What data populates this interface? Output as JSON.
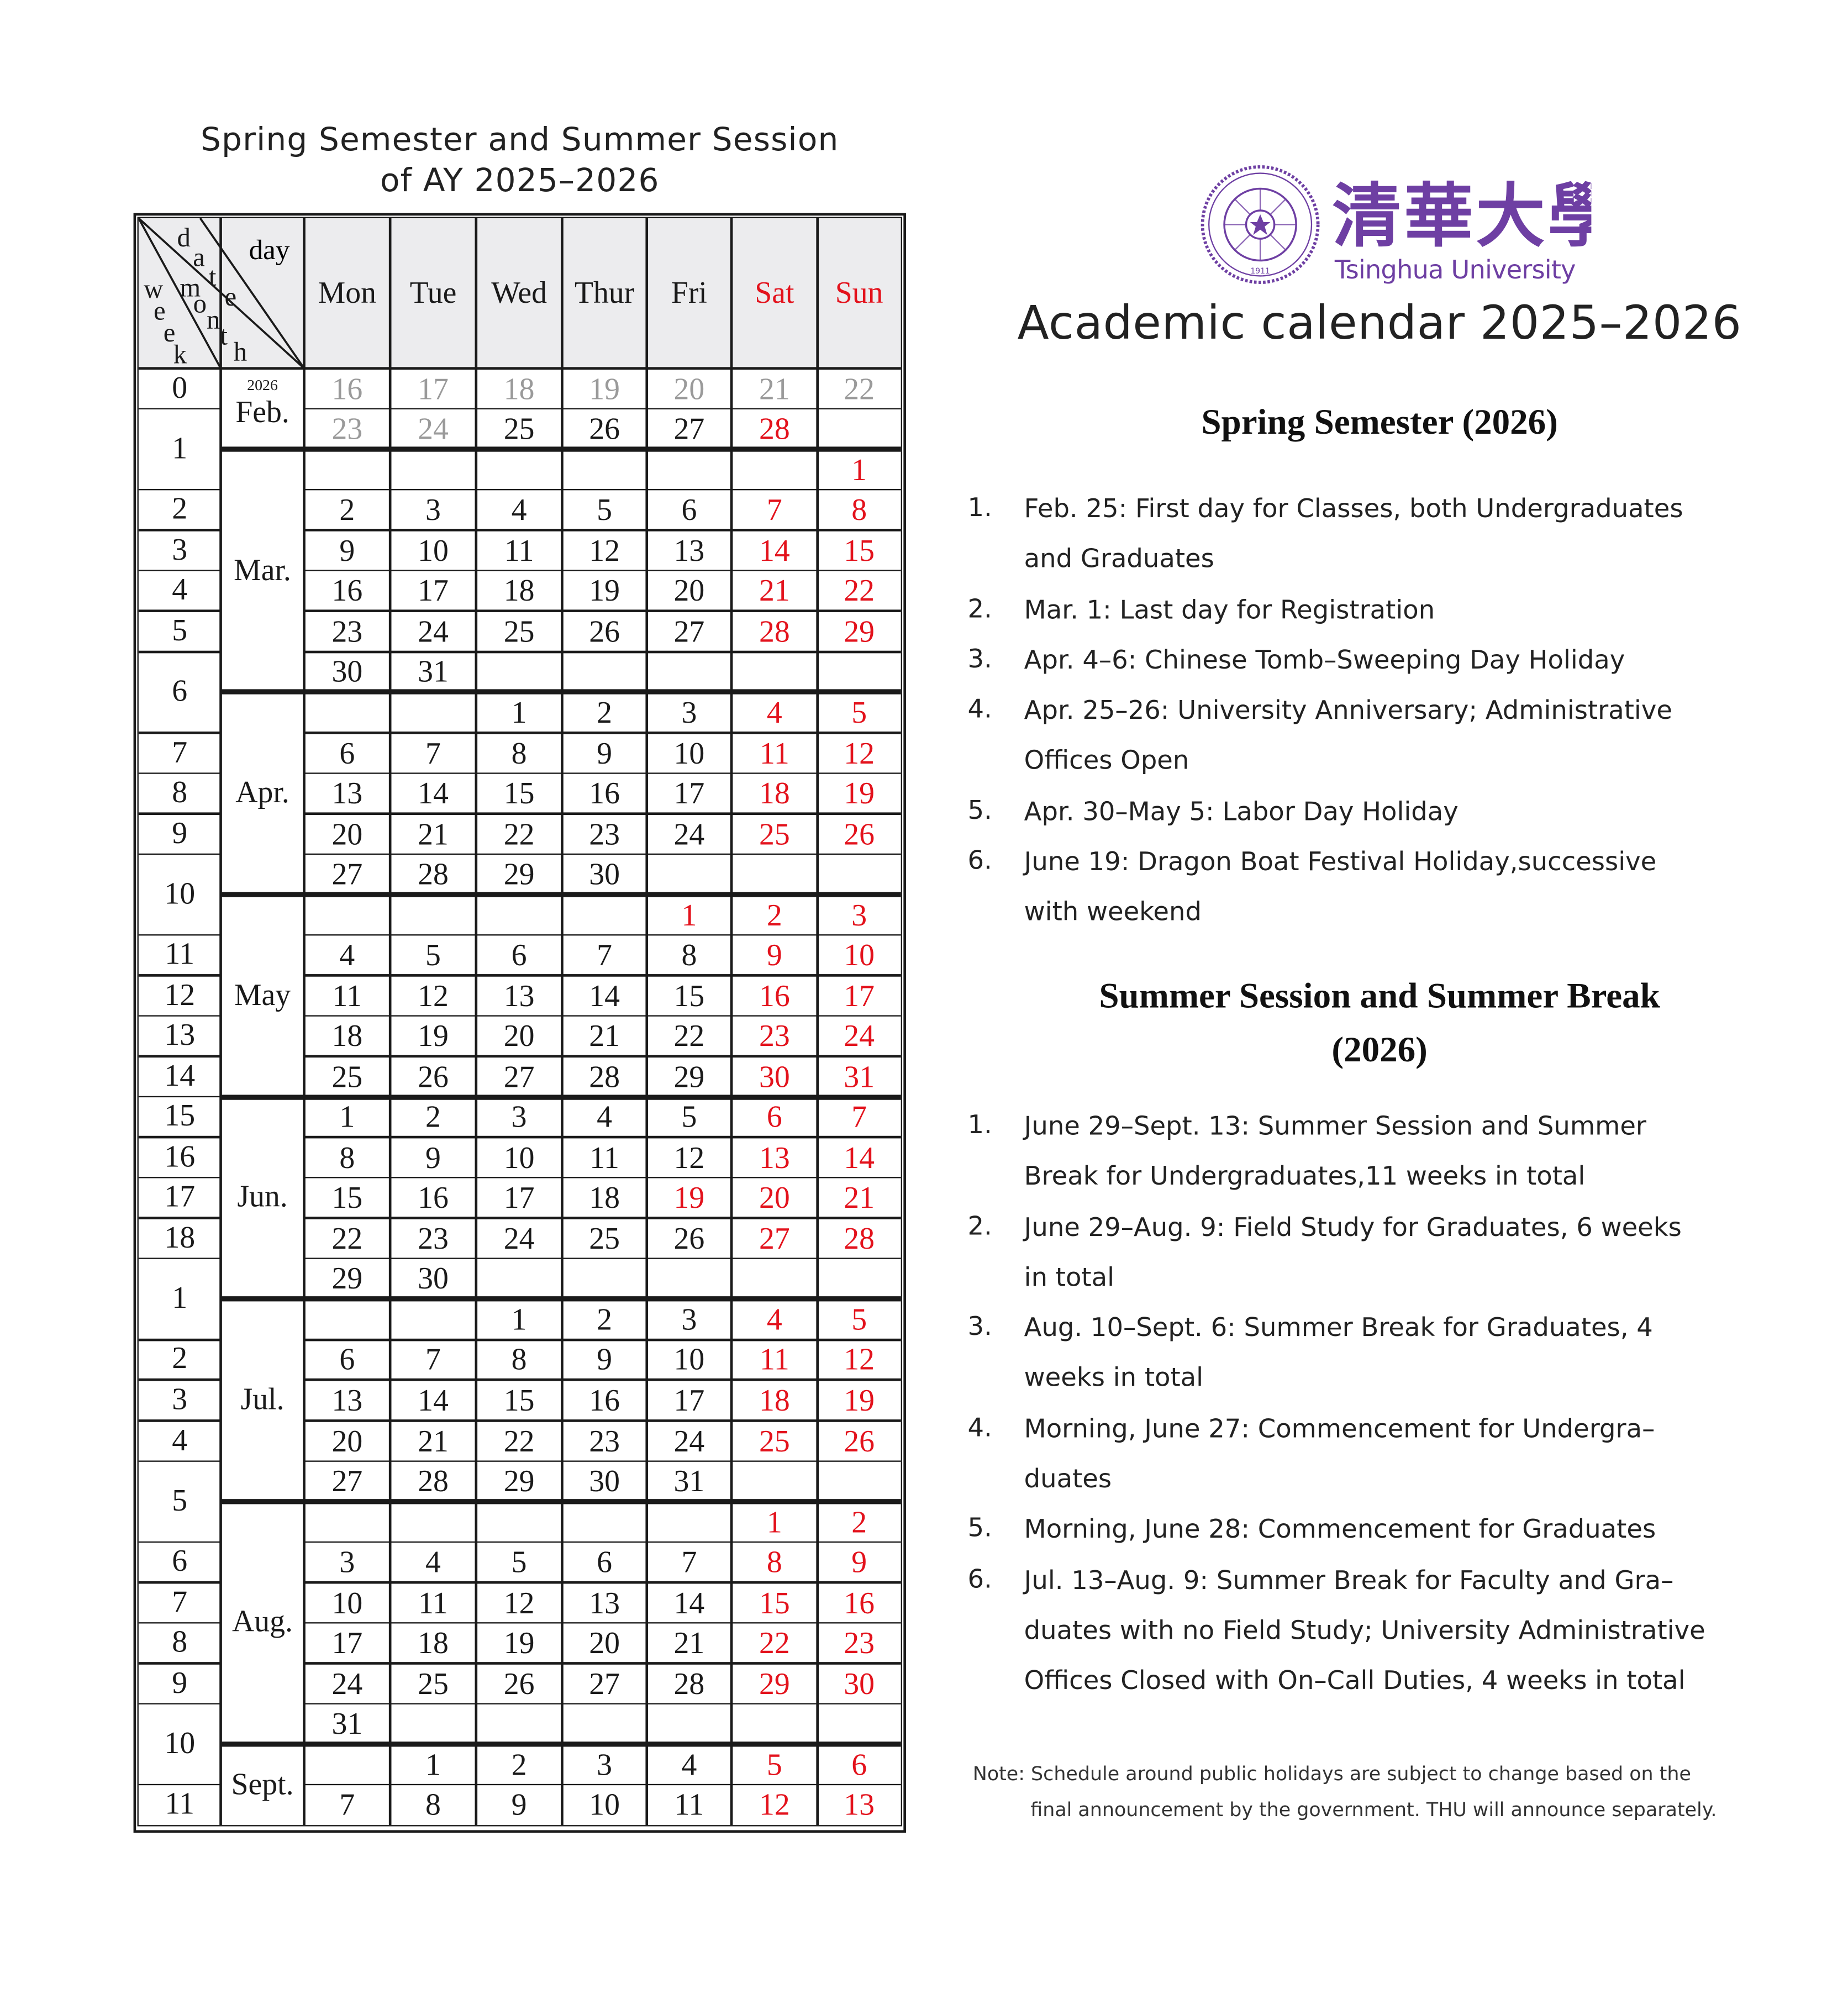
{
  "table_title": [
    "Spring Semester and Summer Session",
    "of AY 2025–2026"
  ],
  "corner_labels": {
    "day": "day",
    "date": "date",
    "month": "month",
    "week": "week"
  },
  "weekdays": [
    "Mon",
    "Tue",
    "Wed",
    "Thur",
    "Fri",
    "Sat",
    "Sun"
  ],
  "colors": {
    "weekend_holiday": "#e3121c",
    "past": "#9a9a9a",
    "text": "#1a1a1a",
    "header_bg": "#ececee",
    "brand_purple": "#6e3fa3"
  },
  "months": [
    {
      "label": "Feb.",
      "year": "2026",
      "rows": 2
    },
    {
      "label": "Mar.",
      "rows": 6
    },
    {
      "label": "Apr.",
      "rows": 5
    },
    {
      "label": "May",
      "rows": 5
    },
    {
      "label": "Jun.",
      "rows": 5
    },
    {
      "label": "Jul.",
      "rows": 5
    },
    {
      "label": "Aug.",
      "rows": 6
    },
    {
      "label": "Sept.",
      "rows": 2
    }
  ],
  "weeks": [
    {
      "label": "0",
      "rows": 1
    },
    {
      "label": "1",
      "rows": 2
    },
    {
      "label": "2",
      "rows": 1
    },
    {
      "label": "3",
      "rows": 1
    },
    {
      "label": "4",
      "rows": 1
    },
    {
      "label": "5",
      "rows": 1
    },
    {
      "label": "6",
      "rows": 2
    },
    {
      "label": "7",
      "rows": 1
    },
    {
      "label": "8",
      "rows": 1
    },
    {
      "label": "9",
      "rows": 1
    },
    {
      "label": "10",
      "rows": 2
    },
    {
      "label": "11",
      "rows": 1
    },
    {
      "label": "12",
      "rows": 1
    },
    {
      "label": "13",
      "rows": 1
    },
    {
      "label": "14",
      "rows": 1
    },
    {
      "label": "15",
      "rows": 1
    },
    {
      "label": "16",
      "rows": 1
    },
    {
      "label": "17",
      "rows": 1
    },
    {
      "label": "18",
      "rows": 1
    },
    {
      "label": "1",
      "rows": 2
    },
    {
      "label": "2",
      "rows": 1
    },
    {
      "label": "3",
      "rows": 1
    },
    {
      "label": "4",
      "rows": 1
    },
    {
      "label": "5",
      "rows": 2
    },
    {
      "label": "6",
      "rows": 1
    },
    {
      "label": "7",
      "rows": 1
    },
    {
      "label": "8",
      "rows": 1
    },
    {
      "label": "9",
      "rows": 1
    },
    {
      "label": "10",
      "rows": 2
    },
    {
      "label": "11",
      "rows": 1
    }
  ],
  "rows": [
    {
      "dates": [
        "16",
        "17",
        "18",
        "19",
        "20",
        "21",
        "22"
      ],
      "past": [
        0,
        1,
        2,
        3,
        4,
        5,
        6
      ]
    },
    {
      "dates": [
        "23",
        "24",
        "25",
        "26",
        "27",
        "28",
        ""
      ],
      "past": [
        0,
        1
      ]
    },
    {
      "dates": [
        "",
        "",
        "",
        "",
        "",
        "",
        "1"
      ]
    },
    {
      "dates": [
        "2",
        "3",
        "4",
        "5",
        "6",
        "7",
        "8"
      ]
    },
    {
      "dates": [
        "9",
        "10",
        "11",
        "12",
        "13",
        "14",
        "15"
      ]
    },
    {
      "dates": [
        "16",
        "17",
        "18",
        "19",
        "20",
        "21",
        "22"
      ]
    },
    {
      "dates": [
        "23",
        "24",
        "25",
        "26",
        "27",
        "28",
        "29"
      ]
    },
    {
      "dates": [
        "30",
        "31",
        "",
        "",
        "",
        "",
        ""
      ]
    },
    {
      "dates": [
        "",
        "",
        "1",
        "2",
        "3",
        "4",
        "5"
      ]
    },
    {
      "dates": [
        "6",
        "7",
        "8",
        "9",
        "10",
        "11",
        "12"
      ]
    },
    {
      "dates": [
        "13",
        "14",
        "15",
        "16",
        "17",
        "18",
        "19"
      ]
    },
    {
      "dates": [
        "20",
        "21",
        "22",
        "23",
        "24",
        "25",
        "26"
      ]
    },
    {
      "dates": [
        "27",
        "28",
        "29",
        "30",
        "",
        "",
        ""
      ]
    },
    {
      "dates": [
        "",
        "",
        "",
        "",
        "1",
        "2",
        "3"
      ],
      "holiday": [
        4
      ]
    },
    {
      "dates": [
        "4",
        "5",
        "6",
        "7",
        "8",
        "9",
        "10"
      ]
    },
    {
      "dates": [
        "11",
        "12",
        "13",
        "14",
        "15",
        "16",
        "17"
      ]
    },
    {
      "dates": [
        "18",
        "19",
        "20",
        "21",
        "22",
        "23",
        "24"
      ]
    },
    {
      "dates": [
        "25",
        "26",
        "27",
        "28",
        "29",
        "30",
        "31"
      ]
    },
    {
      "dates": [
        "1",
        "2",
        "3",
        "4",
        "5",
        "6",
        "7"
      ]
    },
    {
      "dates": [
        "8",
        "9",
        "10",
        "11",
        "12",
        "13",
        "14"
      ]
    },
    {
      "dates": [
        "15",
        "16",
        "17",
        "18",
        "19",
        "20",
        "21"
      ],
      "holiday": [
        4
      ]
    },
    {
      "dates": [
        "22",
        "23",
        "24",
        "25",
        "26",
        "27",
        "28"
      ]
    },
    {
      "dates": [
        "29",
        "30",
        "",
        "",
        "",
        "",
        ""
      ]
    },
    {
      "dates": [
        "",
        "",
        "1",
        "2",
        "3",
        "4",
        "5"
      ]
    },
    {
      "dates": [
        "6",
        "7",
        "8",
        "9",
        "10",
        "11",
        "12"
      ]
    },
    {
      "dates": [
        "13",
        "14",
        "15",
        "16",
        "17",
        "18",
        "19"
      ]
    },
    {
      "dates": [
        "20",
        "21",
        "22",
        "23",
        "24",
        "25",
        "26"
      ]
    },
    {
      "dates": [
        "27",
        "28",
        "29",
        "30",
        "31",
        "",
        ""
      ]
    },
    {
      "dates": [
        "",
        "",
        "",
        "",
        "",
        "1",
        "2"
      ]
    },
    {
      "dates": [
        "3",
        "4",
        "5",
        "6",
        "7",
        "8",
        "9"
      ]
    },
    {
      "dates": [
        "10",
        "11",
        "12",
        "13",
        "14",
        "15",
        "16"
      ]
    },
    {
      "dates": [
        "17",
        "18",
        "19",
        "20",
        "21",
        "22",
        "23"
      ]
    },
    {
      "dates": [
        "24",
        "25",
        "26",
        "27",
        "28",
        "29",
        "30"
      ]
    },
    {
      "dates": [
        "31",
        "",
        "",
        "",
        "",
        "",
        ""
      ]
    },
    {
      "dates": [
        "",
        "1",
        "2",
        "3",
        "4",
        "5",
        "6"
      ]
    },
    {
      "dates": [
        "7",
        "8",
        "9",
        "10",
        "11",
        "12",
        "13"
      ]
    }
  ],
  "logo": {
    "chinese_name": "清華大學",
    "english_name": "Tsinghua University",
    "seal_year": "1911"
  },
  "calendar_title": "Academic calendar 2025–2026",
  "spring": {
    "heading": "Spring Semester (2026)",
    "items": [
      {
        "num": "1.",
        "lines": [
          "Feb. 25: First day for Classes, both Undergraduates",
          "and Graduates"
        ]
      },
      {
        "num": "2.",
        "lines": [
          "Mar. 1: Last day for Registration"
        ]
      },
      {
        "num": "3.",
        "lines": [
          "Apr. 4–6: Chinese Tomb–Sweeping Day Holiday"
        ]
      },
      {
        "num": "4.",
        "lines": [
          "Apr. 25–26: University Anniversary; Administrative",
          "Offices Open"
        ]
      },
      {
        "num": "5.",
        "lines": [
          "Apr. 30–May 5: Labor Day Holiday"
        ]
      },
      {
        "num": "6.",
        "lines": [
          "June 19: Dragon Boat Festival Holiday,successive",
          "with weekend"
        ]
      }
    ]
  },
  "summer": {
    "heading": [
      "Summer Session and Summer Break",
      "(2026)"
    ],
    "items": [
      {
        "num": "1.",
        "lines": [
          "June 29–Sept. 13: Summer Session and Summer",
          "Break for Undergraduates,11 weeks in total"
        ]
      },
      {
        "num": "2.",
        "lines": [
          "June 29–Aug. 9: Field Study for Graduates, 6 weeks",
          "in total"
        ]
      },
      {
        "num": "3.",
        "lines": [
          "Aug. 10–Sept. 6: Summer Break for Graduates, 4",
          "weeks in total"
        ]
      },
      {
        "num": "4.",
        "lines": [
          "Morning, June 27: Commencement for Undergra–",
          "duates"
        ]
      },
      {
        "num": "5.",
        "lines": [
          "Morning, June 28: Commencement for Graduates"
        ]
      },
      {
        "num": "6.",
        "lines": [
          "Jul. 13–Aug. 9: Summer Break for Faculty and Gra–",
          "duates with no Field Study; University Administrative",
          "Offices Closed with On–Call Duties, 4 weeks in total"
        ]
      }
    ]
  },
  "note": [
    "Note: Schedule around public holidays are subject to change based on the",
    "final announcement by the government. THU will announce separately."
  ]
}
